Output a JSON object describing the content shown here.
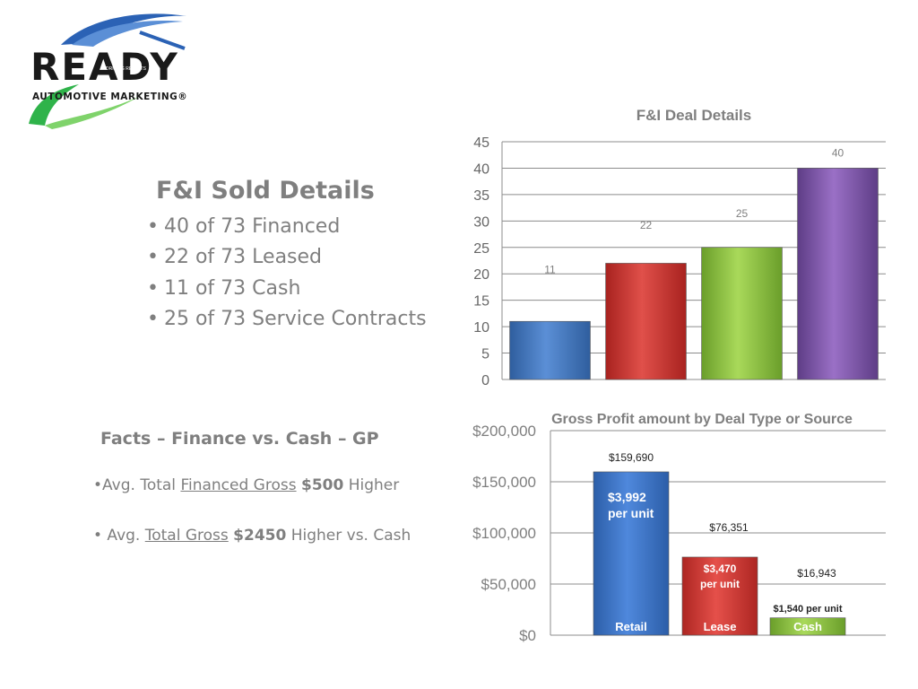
{
  "logo": {
    "wordmark": "READY",
    "small_text": "DRIVING RESULTS",
    "tagline": "AUTOMOTIVE MARKETING®"
  },
  "sold_details": {
    "title": "F&I Sold Details",
    "items": [
      "40 of 73 Financed",
      "22 of 73 Leased",
      "11 of 73 Cash",
      "25 of 73 Service Contracts"
    ]
  },
  "facts": {
    "title": "Facts – Finance vs. Cash – GP",
    "fact1": {
      "prefix": "•Avg. Total ",
      "underline": "Financed Gross",
      "bold": "$500",
      "suffix": " Higher"
    },
    "fact2": {
      "prefix": "• Avg. ",
      "underline": "Total Gross",
      "bold": "$2450",
      "suffix": " Higher vs. Cash"
    }
  },
  "chart_data": [
    {
      "type": "bar",
      "title": "F&I Deal Details",
      "categories": [
        "",
        "",
        "",
        ""
      ],
      "values": [
        11,
        22,
        25,
        40
      ],
      "data_labels": [
        "11",
        "22",
        "25",
        "40"
      ],
      "ylim": [
        0,
        45
      ],
      "yticks": [
        "0",
        "5",
        "10",
        "15",
        "20",
        "25",
        "30",
        "35",
        "40",
        "45"
      ],
      "colors": [
        "#4a7ebb",
        "#c9302c",
        "#8dc63f",
        "#7e57a8"
      ],
      "grid": true,
      "legend": "none"
    },
    {
      "type": "bar",
      "title": "Gross Profit amount by Deal Type or Source",
      "categories": [
        "Retail",
        "Lease",
        "Cash"
      ],
      "values": [
        159690,
        76351,
        16943
      ],
      "data_labels": [
        "$159,690",
        "$76,351",
        "$16,943"
      ],
      "per_unit_labels": [
        [
          "$3,992",
          "per unit"
        ],
        [
          "$3,470",
          "per unit"
        ],
        [
          "$1,540 per unit"
        ]
      ],
      "ylim": [
        0,
        200000
      ],
      "yticks": [
        "$0",
        "$50,000",
        "$100,000",
        "$150,000",
        "$200,000"
      ],
      "colors": [
        "#3d73c4",
        "#d23a34",
        "#8dc63f"
      ],
      "grid": true,
      "legend": "none"
    }
  ]
}
